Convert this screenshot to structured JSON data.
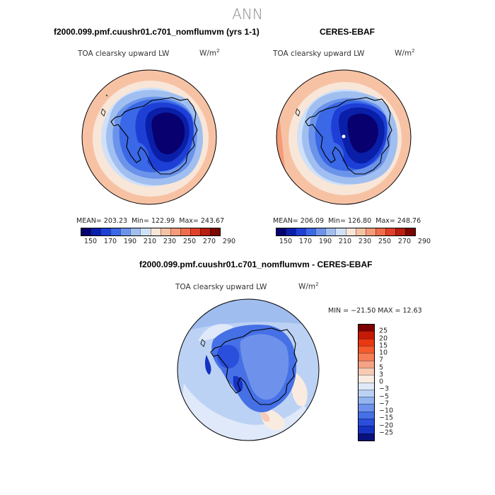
{
  "figure": {
    "title": "ANN"
  },
  "panels": [
    {
      "title": "f2000.099.pmf.cuushr01.c701_nomflumvm (yrs 1-1)",
      "field": "TOA clearsky upward LW",
      "units_base": "W/m",
      "units_exp": "2",
      "stats": {
        "mean_label": "MEAN=",
        "mean": "203.23",
        "min_label": "Min=",
        "min": "122.99",
        "max_label": "Max=",
        "max": "243.67"
      }
    },
    {
      "title": "CERES-EBAF",
      "field": "TOA clearsky upward LW",
      "units_base": "W/m",
      "units_exp": "2",
      "stats": {
        "mean_label": "MEAN=",
        "mean": "206.09",
        "min_label": "Min=",
        "min": "126.80",
        "max_label": "Max=",
        "max": "248.76"
      }
    },
    {
      "title": "f2000.099.pmf.cuushr01.c701_nomflumvm - CERES-EBAF",
      "field": "TOA clearsky upward LW",
      "units_base": "W/m",
      "units_exp": "2",
      "minmax": "MIN = −21.50 MAX =  12.63"
    }
  ],
  "colorbar_abs": {
    "colors": [
      "#08006e",
      "#0a1fa8",
      "#1e3fd6",
      "#3a68e6",
      "#6b93ea",
      "#a0bff0",
      "#cfe0f8",
      "#f8e6d8",
      "#f7c2a4",
      "#f49b78",
      "#ef6d4c",
      "#e0402a",
      "#b81f10",
      "#7d0600"
    ],
    "labels": [
      "150",
      "170",
      "190",
      "210",
      "230",
      "250",
      "270",
      "290"
    ]
  },
  "colorbar_diff": {
    "colors": [
      "#7d0000",
      "#c51a05",
      "#eb3712",
      "#f45a2c",
      "#f67d55",
      "#f7a283",
      "#f8c9b4",
      "#f9ebe0",
      "#dfe9fa",
      "#bcd2f4",
      "#94b4ee",
      "#6e92eb",
      "#4570e6",
      "#2a4fdc",
      "#1732c3",
      "#08127a"
    ],
    "labels": [
      "25",
      "20",
      "15",
      "10",
      "7",
      "5",
      "3",
      "0",
      "−3",
      "−5",
      "−7",
      "−10",
      "−15",
      "−20",
      "−25"
    ]
  }
}
